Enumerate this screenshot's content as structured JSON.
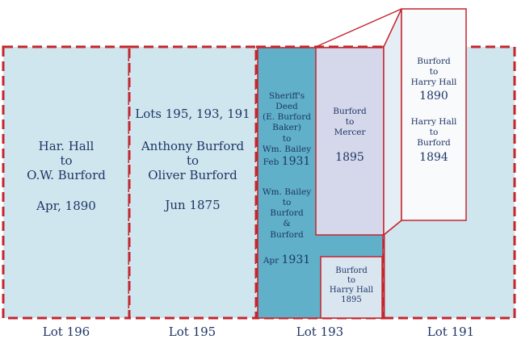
{
  "lots": [
    {
      "label": "Lot 196",
      "deed": [
        "Har. Hall",
        "to",
        "O.W. Burford"
      ],
      "date": "Apr, 1890"
    },
    {
      "label": "Lot 195",
      "lots_line": "Lots 195, 193, 191",
      "deed": [
        "Anthony Burford",
        "to",
        "Oliver Burford"
      ],
      "date": "Jun 1875"
    },
    {
      "label": "Lot 193",
      "sheriff": [
        "Sheriff's",
        "Deed",
        "(E. Burford",
        "Baker)",
        "to",
        "Wm. Bailey"
      ],
      "sheriff_date_month": "Feb",
      "sheriff_date_year": "1931",
      "bailey": [
        "Wm. Bailey",
        "to",
        "Burford",
        "&",
        "Burford"
      ],
      "bailey_date_month": "Apr",
      "bailey_date_year": "1931",
      "mercer": [
        "Burford",
        "to",
        "Mercer"
      ],
      "mercer_year": "1895",
      "small_box": [
        "Burford",
        "to",
        "Harry Hall",
        "1895"
      ]
    },
    {
      "label": "Lot 191",
      "callout_a": [
        "Burford",
        "to",
        "Harry Hall"
      ],
      "callout_a_year": "1890",
      "callout_b": [
        "Harry Hall",
        "to",
        "Burford"
      ],
      "callout_b_year": "1894"
    }
  ],
  "colors": {
    "parcel_fill": "#cfe6ee",
    "sheriff_fill": "#5fb0c8",
    "mercer_fill": "#d4d8ea",
    "callout_fill": "#f8fafc",
    "boundary_red": "#c4262e",
    "text_navy": "#1f3566"
  }
}
